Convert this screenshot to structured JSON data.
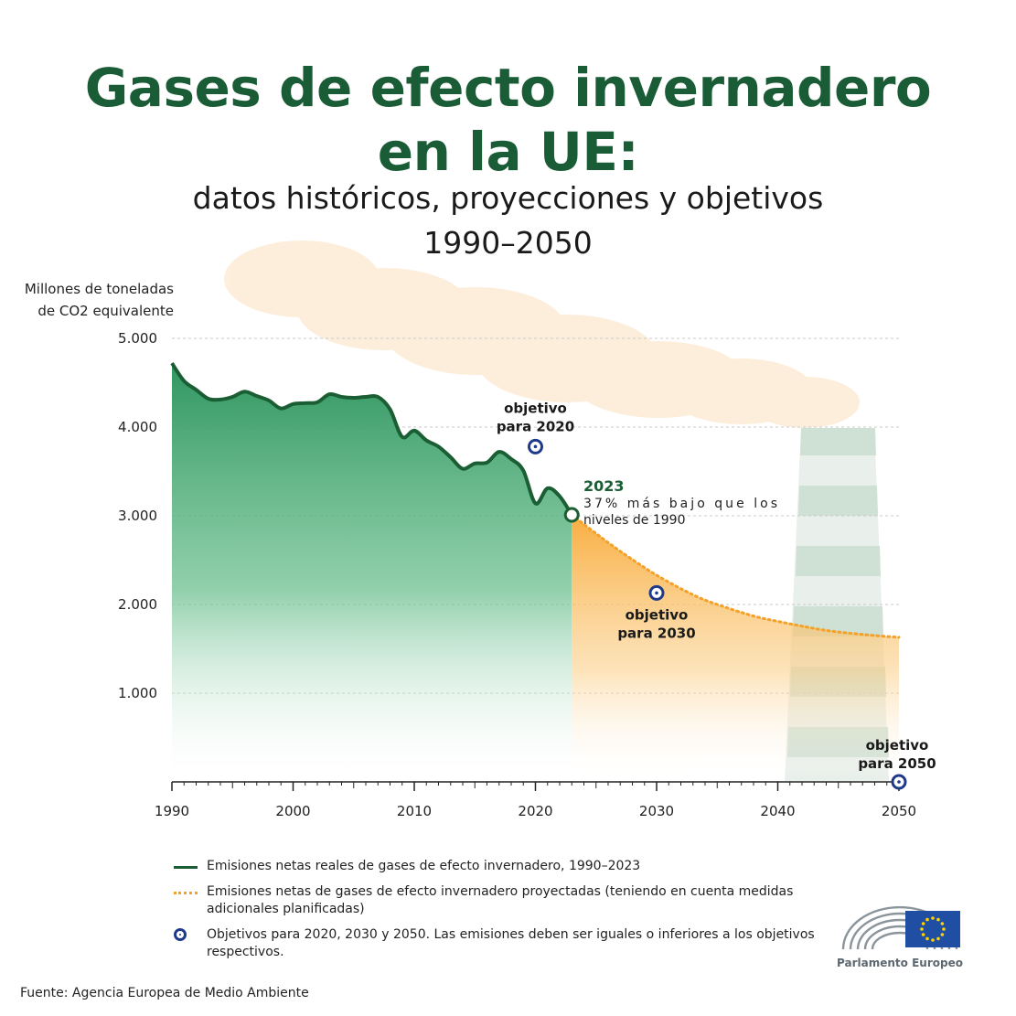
{
  "header": {
    "title_line1": "Gases de efecto invernadero",
    "title_line2": "en la UE:",
    "subtitle": "datos históricos, proyecciones y objetivos",
    "period": "1990–2050"
  },
  "chart_data": {
    "type": "area",
    "ylabel_line1": "Millones de toneladas",
    "ylabel_line2": "de CO2 equivalente",
    "ylim": [
      0,
      5000
    ],
    "xlim": [
      1990,
      2050
    ],
    "y_ticks": [
      1000,
      2000,
      3000,
      4000,
      5000
    ],
    "y_tick_labels": [
      "1.000",
      "2.000",
      "3.000",
      "4.000",
      "5.000"
    ],
    "x_ticks": [
      1990,
      2000,
      2010,
      2020,
      2030,
      2040,
      2050
    ],
    "x_tick_labels": [
      "1990",
      "2000",
      "2010",
      "2020",
      "2030",
      "2040",
      "2050"
    ],
    "series": [
      {
        "name": "Emisiones netas reales de gases de efecto invernadero, 1990–2023",
        "color": "#1b5e34",
        "x": [
          1990,
          1991,
          1992,
          1993,
          1994,
          1995,
          1996,
          1997,
          1998,
          1999,
          2000,
          2001,
          2002,
          2003,
          2004,
          2005,
          2006,
          2007,
          2008,
          2009,
          2010,
          2011,
          2012,
          2013,
          2014,
          2015,
          2016,
          2017,
          2018,
          2019,
          2020,
          2021,
          2022,
          2023
        ],
        "values": [
          4720,
          4520,
          4420,
          4320,
          4310,
          4340,
          4400,
          4350,
          4300,
          4210,
          4260,
          4270,
          4280,
          4370,
          4340,
          4330,
          4340,
          4340,
          4200,
          3890,
          3960,
          3850,
          3780,
          3660,
          3530,
          3590,
          3600,
          3720,
          3640,
          3510,
          3140,
          3310,
          3220,
          3010
        ]
      },
      {
        "name": "Emisiones netas de gases de efecto invernadero proyectadas (teniendo en cuenta medidas adicionales planificadas)",
        "color": "#f5a128",
        "x": [
          2023,
          2025,
          2027,
          2030,
          2033,
          2035,
          2038,
          2040,
          2043,
          2045,
          2048,
          2050
        ],
        "values": [
          3010,
          2800,
          2600,
          2330,
          2110,
          2000,
          1870,
          1810,
          1730,
          1690,
          1650,
          1630
        ]
      }
    ],
    "targets": [
      {
        "x": 2020,
        "value": 3780,
        "label_line1": "objetivo",
        "label_line2": "para 2020"
      },
      {
        "x": 2030,
        "value": 2130,
        "label_line1": "objetivo",
        "label_line2": "para 2030"
      },
      {
        "x": 2050,
        "value": 0,
        "label_line1": "objetivo",
        "label_line2": "para 2050"
      }
    ],
    "annotation": {
      "x": 2023,
      "value": 3010,
      "year": "2023",
      "text_line1": "37% más bajo que los",
      "text_line2": "niveles de 1990"
    },
    "colors": {
      "historic_fill": "#3d9e6a",
      "projected_fill": "#f9b24a",
      "target": "#1f3a8a"
    }
  },
  "legend": {
    "historic": "Emisiones netas reales de gases de efecto invernadero, 1990–2023",
    "projected": "Emisiones netas de gases de efecto invernadero proyectadas (teniendo en cuenta medidas adicionales planificadas)",
    "targets": "Objetivos para 2020, 2030 y 2050. Las emisiones deben ser iguales o inferiores a los objetivos respectivos."
  },
  "footer": {
    "source": "Fuente: Agencia Europea de Medio Ambiente",
    "logo_name": "Parlamento Europeo",
    "logo_icon": "eu-flag-icon"
  }
}
